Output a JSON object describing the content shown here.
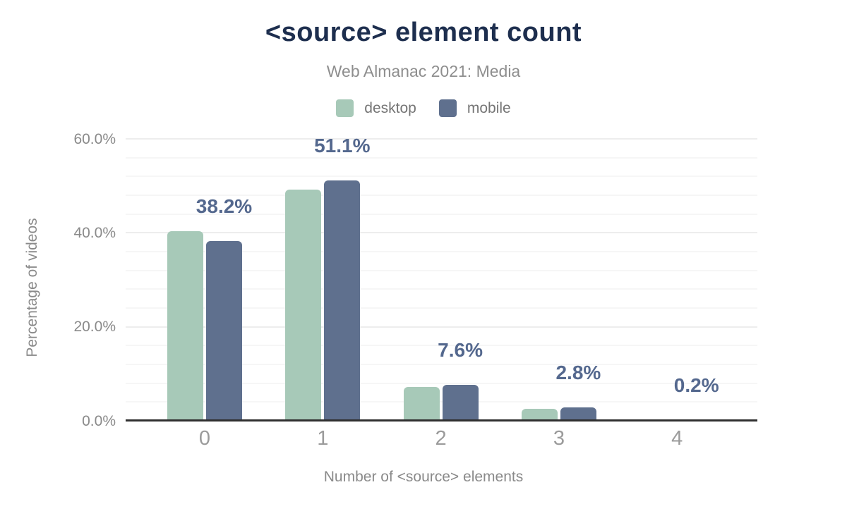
{
  "chart_data": {
    "type": "bar",
    "title": "<source> element count",
    "subtitle": "Web Almanac 2021: Media",
    "categories": [
      "0",
      "1",
      "2",
      "3",
      "4"
    ],
    "series": [
      {
        "name": "desktop",
        "color": "#a7c9b8",
        "values": [
          40.3,
          49.2,
          7.2,
          2.6,
          0.2
        ]
      },
      {
        "name": "mobile",
        "color": "#5f708e",
        "values": [
          38.2,
          51.1,
          7.6,
          2.8,
          0.2
        ]
      }
    ],
    "bar_labels": [
      "38.2%",
      "51.1%",
      "7.6%",
      "2.8%",
      "0.2%"
    ],
    "bar_label_series": "mobile",
    "xlabel": "Number of <source> elements",
    "ylabel": "Percentage of videos",
    "ylim": [
      0,
      60
    ],
    "yticks": [
      {
        "value": 0,
        "label": "0.0%"
      },
      {
        "value": 20,
        "label": "20.0%"
      },
      {
        "value": 40,
        "label": "40.0%"
      },
      {
        "value": 60,
        "label": "60.0%"
      }
    ],
    "grid": {
      "on": true,
      "minor_step": 4,
      "major_step": 20
    },
    "legend_position": "top",
    "colors": {
      "title": "#1d2e4e",
      "subtitle": "#8e8e8e",
      "legend_text": "#757575",
      "axis_title": "#8a8a8a",
      "y_tick_text": "#8a8a8a",
      "x_tick_text": "#9b9b9b",
      "bar_label": "#54688e",
      "baseline": "#303030",
      "grid_minor": "#f6f6f6",
      "grid_major": "#ededed"
    }
  }
}
